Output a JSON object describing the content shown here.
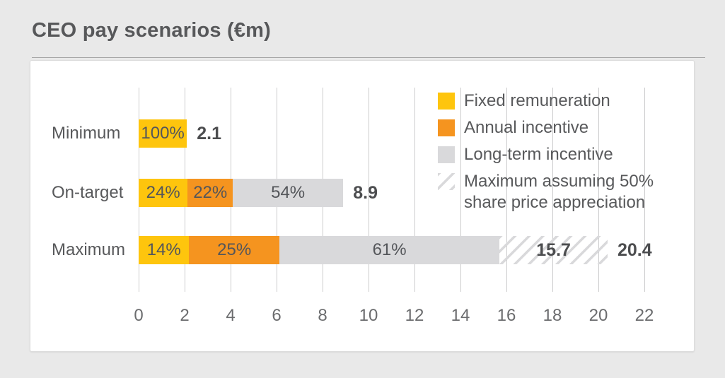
{
  "title": "CEO pay scenarios (€m)",
  "colors": {
    "background": "#e9e9e9",
    "card": "#ffffff",
    "gridline": "#cccccd",
    "text": "#58595b",
    "bold_text": "#4c4d4f",
    "fixed": "#fec50d",
    "annual": "#f5941f",
    "lti": "#d9d9db"
  },
  "legend": {
    "items": [
      {
        "label": "Fixed remuneration",
        "swatch": "solid",
        "color": "#fec50d"
      },
      {
        "label": "Annual incentive",
        "swatch": "solid",
        "color": "#f5941f"
      },
      {
        "label": "Long-term incentive",
        "swatch": "solid",
        "color": "#d9d9db"
      },
      {
        "label": "Maximum assuming 50% share price appreciation",
        "swatch": "hatched"
      }
    ]
  },
  "chart_data": {
    "type": "bar",
    "orientation": "horizontal",
    "title": "CEO pay scenarios (€m)",
    "value_unit": "€m",
    "x_ticks": [
      0,
      2,
      4,
      6,
      8,
      10,
      12,
      14,
      16,
      18,
      20,
      22
    ],
    "xlim": [
      0,
      23
    ],
    "grid": true,
    "legend_position": "top-right",
    "series_colors": {
      "fixed": "#fec50d",
      "annual": "#f5941f",
      "lti": "#d9d9db"
    },
    "series_names": {
      "fixed": "Fixed remuneration",
      "annual": "Annual incentive",
      "lti": "Long-term incentive"
    },
    "rows": [
      {
        "label": "Minimum",
        "total": 2.1,
        "total_label": "2.1",
        "segments": [
          {
            "series": "fixed",
            "pct": 100,
            "pct_label": "100%"
          }
        ]
      },
      {
        "label": "On-target",
        "total": 8.9,
        "total_label": "8.9",
        "segments": [
          {
            "series": "fixed",
            "pct": 24,
            "pct_label": "24%"
          },
          {
            "series": "annual",
            "pct": 22,
            "pct_label": "22%"
          },
          {
            "series": "lti",
            "pct": 54,
            "pct_label": "54%"
          }
        ]
      },
      {
        "label": "Maximum",
        "total": 15.7,
        "total_label": "15.7",
        "segments": [
          {
            "series": "fixed",
            "pct": 14,
            "pct_label": "14%"
          },
          {
            "series": "annual",
            "pct": 25,
            "pct_label": "25%"
          },
          {
            "series": "lti",
            "pct": 61,
            "pct_label": "61%"
          }
        ],
        "extension": {
          "to": 20.4,
          "to_label": "20.4",
          "meaning": "Maximum assuming 50% share price appreciation"
        }
      }
    ]
  }
}
